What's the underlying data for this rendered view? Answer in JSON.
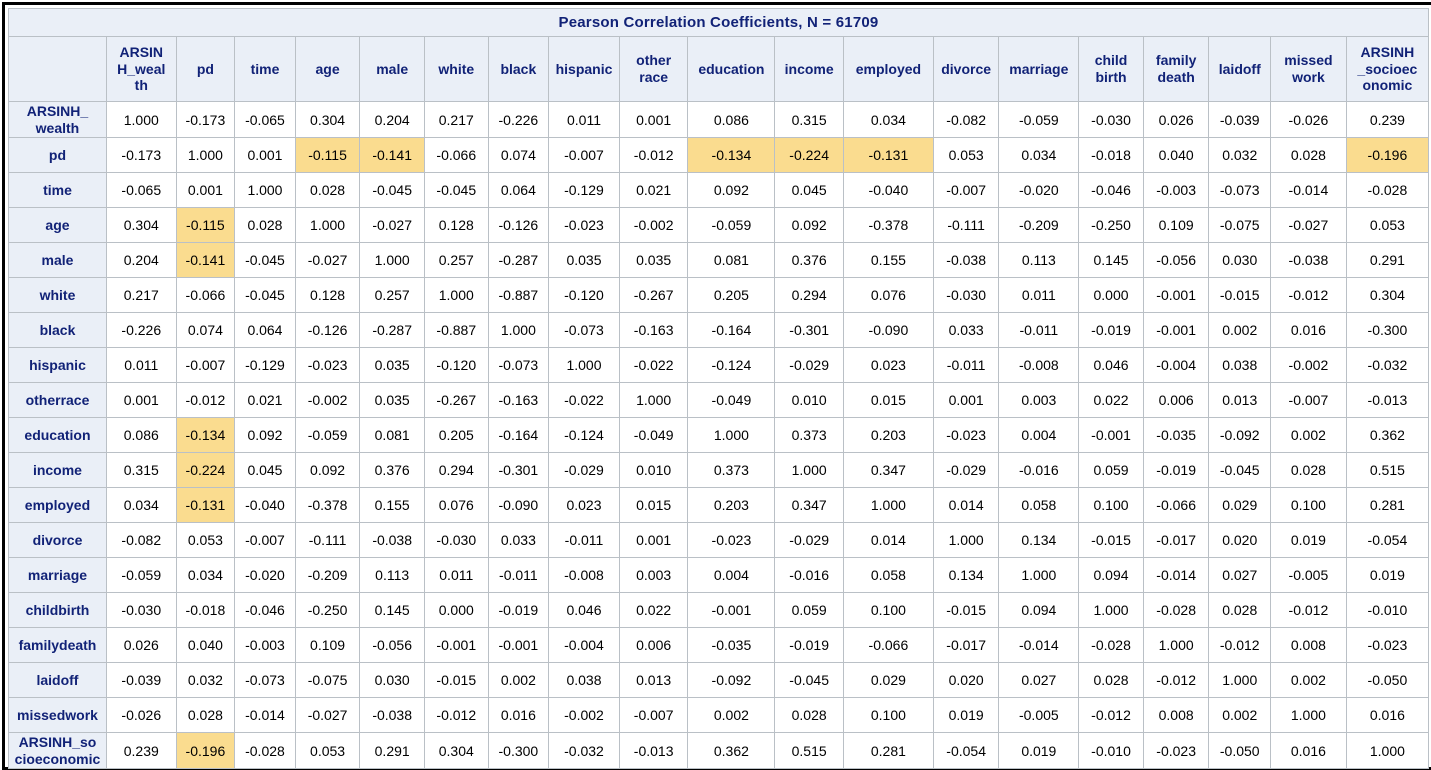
{
  "colors": {
    "header_bg": "#eaeff7",
    "header_text": "#112277",
    "grid_border": "#bac0c6",
    "highlight_bg": "#fadc8f",
    "outer_border": "#000000",
    "cell_bg": "#ffffff",
    "cell_text": "#000000"
  },
  "chart_data": {
    "type": "table",
    "title": "Pearson Correlation Coefficients, N = 61709",
    "n": 61709,
    "variables": [
      "ARSINH_wealth",
      "pd",
      "time",
      "age",
      "male",
      "white",
      "black",
      "hispanic",
      "otherrace",
      "education",
      "income",
      "employed",
      "divorce",
      "marriage",
      "childbirth",
      "familydeath",
      "laidoff",
      "missedwork",
      "ARSINH_socioeconomic"
    ],
    "column_headers_display": [
      "ARSIN\nH_weal\nth",
      "pd",
      "time",
      "age",
      "male",
      "white",
      "black",
      "hispanic",
      "other\nrace",
      "education",
      "income",
      "employed",
      "divorce",
      "marriage",
      "child\nbirth",
      "family\ndeath",
      "laidoff",
      "missed\nwork",
      "ARSINH\n_socioec\nonomic"
    ],
    "row_headers_display": [
      "ARSINH_\nwealth",
      "pd",
      "time",
      "age",
      "male",
      "white",
      "black",
      "hispanic",
      "otherrace",
      "education",
      "income",
      "employed",
      "divorce",
      "marriage",
      "childbirth",
      "familydeath",
      "laidoff",
      "missedwork",
      "ARSINH_so\ncioeconomic"
    ],
    "matrix": [
      [
        "1.000",
        "-0.173",
        "-0.065",
        "0.304",
        "0.204",
        "0.217",
        "-0.226",
        "0.011",
        "0.001",
        "0.086",
        "0.315",
        "0.034",
        "-0.082",
        "-0.059",
        "-0.030",
        "0.026",
        "-0.039",
        "-0.026",
        "0.239"
      ],
      [
        "-0.173",
        "1.000",
        "0.001",
        "-0.115",
        "-0.141",
        "-0.066",
        "0.074",
        "-0.007",
        "-0.012",
        "-0.134",
        "-0.224",
        "-0.131",
        "0.053",
        "0.034",
        "-0.018",
        "0.040",
        "0.032",
        "0.028",
        "-0.196"
      ],
      [
        "-0.065",
        "0.001",
        "1.000",
        "0.028",
        "-0.045",
        "-0.045",
        "0.064",
        "-0.129",
        "0.021",
        "0.092",
        "0.045",
        "-0.040",
        "-0.007",
        "-0.020",
        "-0.046",
        "-0.003",
        "-0.073",
        "-0.014",
        "-0.028"
      ],
      [
        "0.304",
        "-0.115",
        "0.028",
        "1.000",
        "-0.027",
        "0.128",
        "-0.126",
        "-0.023",
        "-0.002",
        "-0.059",
        "0.092",
        "-0.378",
        "-0.111",
        "-0.209",
        "-0.250",
        "0.109",
        "-0.075",
        "-0.027",
        "0.053"
      ],
      [
        "0.204",
        "-0.141",
        "-0.045",
        "-0.027",
        "1.000",
        "0.257",
        "-0.287",
        "0.035",
        "0.035",
        "0.081",
        "0.376",
        "0.155",
        "-0.038",
        "0.113",
        "0.145",
        "-0.056",
        "0.030",
        "-0.038",
        "0.291"
      ],
      [
        "0.217",
        "-0.066",
        "-0.045",
        "0.128",
        "0.257",
        "1.000",
        "-0.887",
        "-0.120",
        "-0.267",
        "0.205",
        "0.294",
        "0.076",
        "-0.030",
        "0.011",
        "0.000",
        "-0.001",
        "-0.015",
        "-0.012",
        "0.304"
      ],
      [
        "-0.226",
        "0.074",
        "0.064",
        "-0.126",
        "-0.287",
        "-0.887",
        "1.000",
        "-0.073",
        "-0.163",
        "-0.164",
        "-0.301",
        "-0.090",
        "0.033",
        "-0.011",
        "-0.019",
        "-0.001",
        "0.002",
        "0.016",
        "-0.300"
      ],
      [
        "0.011",
        "-0.007",
        "-0.129",
        "-0.023",
        "0.035",
        "-0.120",
        "-0.073",
        "1.000",
        "-0.022",
        "-0.124",
        "-0.029",
        "0.023",
        "-0.011",
        "-0.008",
        "0.046",
        "-0.004",
        "0.038",
        "-0.002",
        "-0.032"
      ],
      [
        "0.001",
        "-0.012",
        "0.021",
        "-0.002",
        "0.035",
        "-0.267",
        "-0.163",
        "-0.022",
        "1.000",
        "-0.049",
        "0.010",
        "0.015",
        "0.001",
        "0.003",
        "0.022",
        "0.006",
        "0.013",
        "-0.007",
        "-0.013"
      ],
      [
        "0.086",
        "-0.134",
        "0.092",
        "-0.059",
        "0.081",
        "0.205",
        "-0.164",
        "-0.124",
        "-0.049",
        "1.000",
        "0.373",
        "0.203",
        "-0.023",
        "0.004",
        "-0.001",
        "-0.035",
        "-0.092",
        "0.002",
        "0.362"
      ],
      [
        "0.315",
        "-0.224",
        "0.045",
        "0.092",
        "0.376",
        "0.294",
        "-0.301",
        "-0.029",
        "0.010",
        "0.373",
        "1.000",
        "0.347",
        "-0.029",
        "-0.016",
        "0.059",
        "-0.019",
        "-0.045",
        "0.028",
        "0.515"
      ],
      [
        "0.034",
        "-0.131",
        "-0.040",
        "-0.378",
        "0.155",
        "0.076",
        "-0.090",
        "0.023",
        "0.015",
        "0.203",
        "0.347",
        "1.000",
        "0.014",
        "0.058",
        "0.100",
        "-0.066",
        "0.029",
        "0.100",
        "0.281"
      ],
      [
        "-0.082",
        "0.053",
        "-0.007",
        "-0.111",
        "-0.038",
        "-0.030",
        "0.033",
        "-0.011",
        "0.001",
        "-0.023",
        "-0.029",
        "0.014",
        "1.000",
        "0.134",
        "-0.015",
        "-0.017",
        "0.020",
        "0.019",
        "-0.054"
      ],
      [
        "-0.059",
        "0.034",
        "-0.020",
        "-0.209",
        "0.113",
        "0.011",
        "-0.011",
        "-0.008",
        "0.003",
        "0.004",
        "-0.016",
        "0.058",
        "0.134",
        "1.000",
        "0.094",
        "-0.014",
        "0.027",
        "-0.005",
        "0.019"
      ],
      [
        "-0.030",
        "-0.018",
        "-0.046",
        "-0.250",
        "0.145",
        "0.000",
        "-0.019",
        "0.046",
        "0.022",
        "-0.001",
        "0.059",
        "0.100",
        "-0.015",
        "0.094",
        "1.000",
        "-0.028",
        "0.028",
        "-0.012",
        "-0.010"
      ],
      [
        "0.026",
        "0.040",
        "-0.003",
        "0.109",
        "-0.056",
        "-0.001",
        "-0.001",
        "-0.004",
        "0.006",
        "-0.035",
        "-0.019",
        "-0.066",
        "-0.017",
        "-0.014",
        "-0.028",
        "1.000",
        "-0.012",
        "0.008",
        "-0.023"
      ],
      [
        "-0.039",
        "0.032",
        "-0.073",
        "-0.075",
        "0.030",
        "-0.015",
        "0.002",
        "0.038",
        "0.013",
        "-0.092",
        "-0.045",
        "0.029",
        "0.020",
        "0.027",
        "0.028",
        "-0.012",
        "1.000",
        "0.002",
        "-0.050"
      ],
      [
        "-0.026",
        "0.028",
        "-0.014",
        "-0.027",
        "-0.038",
        "-0.012",
        "0.016",
        "-0.002",
        "-0.007",
        "0.002",
        "0.028",
        "0.100",
        "0.019",
        "-0.005",
        "-0.012",
        "0.008",
        "0.002",
        "1.000",
        "0.016"
      ],
      [
        "0.239",
        "-0.196",
        "-0.028",
        "0.053",
        "0.291",
        "0.304",
        "-0.300",
        "-0.032",
        "-0.013",
        "0.362",
        "0.515",
        "0.281",
        "-0.054",
        "0.019",
        "-0.010",
        "-0.023",
        "-0.050",
        "0.016",
        "1.000"
      ]
    ],
    "highlighted_cells": [
      [
        1,
        3
      ],
      [
        1,
        4
      ],
      [
        1,
        9
      ],
      [
        1,
        10
      ],
      [
        1,
        11
      ],
      [
        1,
        18
      ],
      [
        3,
        1
      ],
      [
        4,
        1
      ],
      [
        9,
        1
      ],
      [
        10,
        1
      ],
      [
        11,
        1
      ],
      [
        18,
        1
      ]
    ]
  }
}
